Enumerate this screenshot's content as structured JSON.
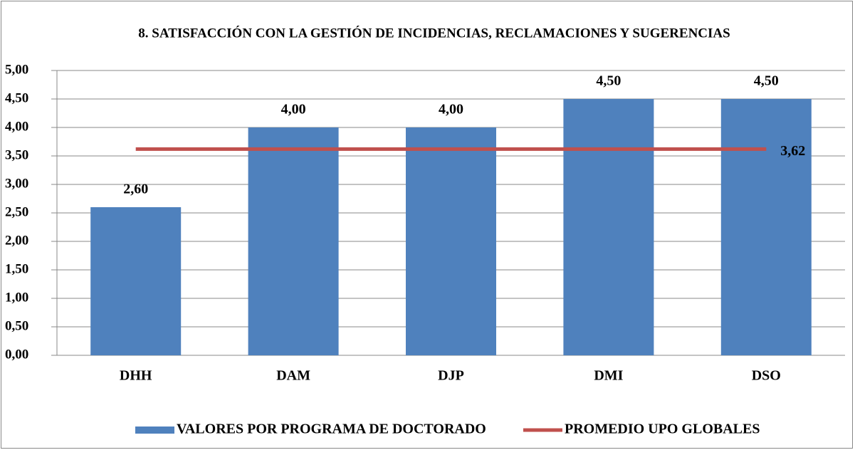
{
  "chart_data": {
    "type": "bar",
    "title": "8. SATISFACCIÓN CON LA GESTIÓN DE INCIDENCIAS, RECLAMACIONES Y SUGERENCIAS",
    "categories": [
      "DHH",
      "DAM",
      "DJP",
      "DMI",
      "DSO"
    ],
    "series": [
      {
        "name": "VALORES POR PROGRAMA DE DOCTORADO",
        "type": "bar",
        "color": "#4f81bd",
        "values": [
          2.6,
          4.0,
          4.0,
          4.5,
          4.5
        ],
        "value_labels": [
          "2,60",
          "4,00",
          "4,00",
          "4,50",
          "4,50"
        ]
      },
      {
        "name": "PROMEDIO UPO GLOBALES",
        "type": "line",
        "color": "#c0504d",
        "values": [
          3.62,
          3.62,
          3.62,
          3.62,
          3.62
        ],
        "value_labels": [
          null,
          null,
          null,
          null,
          "3,62"
        ]
      }
    ],
    "ylim": [
      0,
      5
    ],
    "yticks": [
      {
        "value": 0,
        "label": "0,00"
      },
      {
        "value": 0.5,
        "label": "0,50"
      },
      {
        "value": 1,
        "label": "1,00"
      },
      {
        "value": 1.5,
        "label": "1,50"
      },
      {
        "value": 2,
        "label": "2,00"
      },
      {
        "value": 2.5,
        "label": "2,50"
      },
      {
        "value": 3,
        "label": "3,00"
      },
      {
        "value": 3.5,
        "label": "3,50"
      },
      {
        "value": 4,
        "label": "4,00"
      },
      {
        "value": 4.5,
        "label": "4,50"
      },
      {
        "value": 5,
        "label": "5,00"
      }
    ],
    "grid": true,
    "legend": "bottom"
  }
}
